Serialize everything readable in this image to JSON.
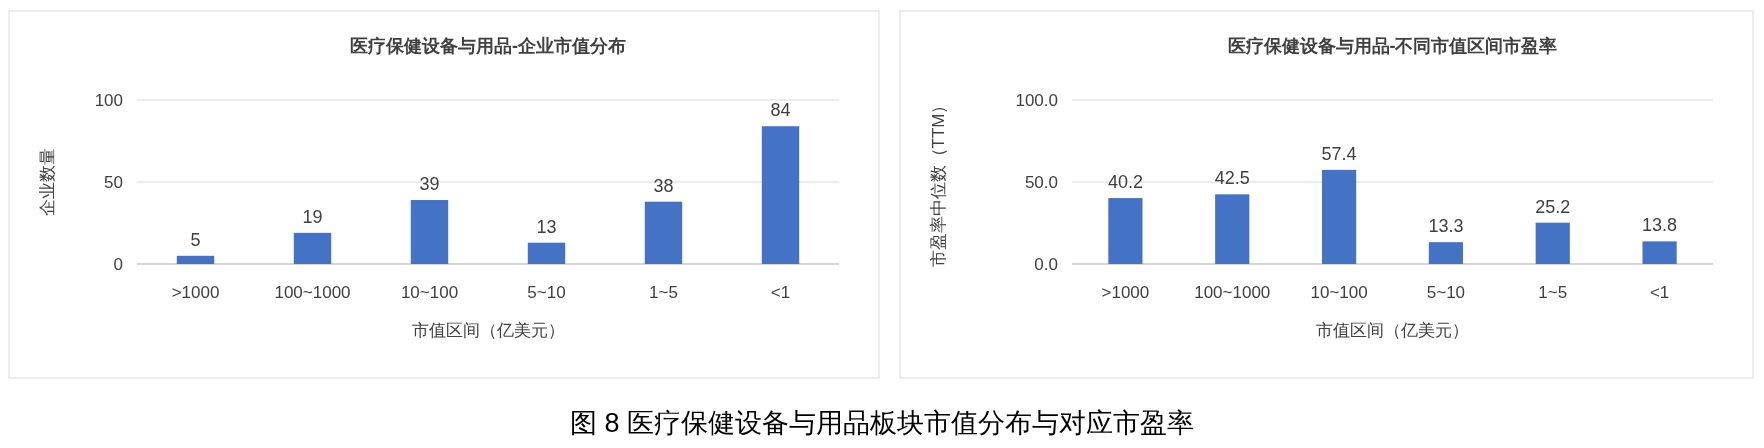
{
  "chart_data": [
    {
      "type": "bar",
      "title": "医疗保健设备与用品-企业市值分布",
      "xlabel": "市值区间（亿美元）",
      "ylabel": "企业数量",
      "categories": [
        ">1000",
        "100~1000",
        "10~100",
        "5~10",
        "1~5",
        "<1"
      ],
      "values": [
        5,
        19,
        39,
        13,
        38,
        84
      ],
      "color": "#4472c4",
      "ylim": [
        0,
        100
      ],
      "yticks": [
        0,
        50,
        100
      ],
      "grid": "y",
      "data_labels": true,
      "annotations": [
        "图 8  医疗保健设备与用品板块市值分布与对应市盈率"
      ]
    },
    {
      "type": "bar",
      "title": "医疗保健设备与用品-不同市值区间市盈率",
      "xlabel": "市值区间（亿美元）",
      "ylabel": "市盈率中位数（TTM）",
      "categories": [
        ">1000",
        "100~1000",
        "10~100",
        "5~10",
        "1~5",
        "<1"
      ],
      "values": [
        40.2,
        42.5,
        57.4,
        13.3,
        25.2,
        13.8
      ],
      "color": "#4472c4",
      "ylim": [
        0,
        100
      ],
      "yticks": [
        {
          "value": 0,
          "label": "0.0"
        },
        {
          "value": 50,
          "label": "50.0"
        },
        {
          "value": 100,
          "label": "100.0"
        }
      ],
      "grid": "y",
      "data_labels": true
    }
  ]
}
